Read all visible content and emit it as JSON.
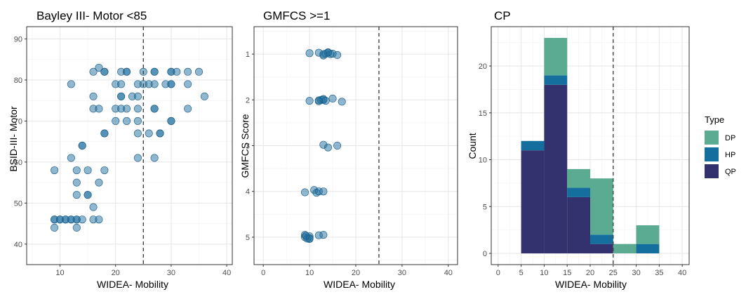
{
  "chart_data": [
    {
      "type": "scatter",
      "title": "Bayley III- Motor <85",
      "xlabel": "WIDEA- Mobility",
      "ylabel": "BSID-III- Motor",
      "xlim": [
        4,
        41
      ],
      "ylim": [
        35,
        93
      ],
      "xticks": [
        10,
        20,
        30,
        40
      ],
      "yticks": [
        40,
        50,
        60,
        70,
        80,
        90
      ],
      "grid": true,
      "vline": 25,
      "point_color": "#1f6fa0",
      "points": [
        [
          9,
          46
        ],
        [
          9,
          46
        ],
        [
          10,
          46
        ],
        [
          10,
          46
        ],
        [
          11,
          46
        ],
        [
          11,
          46
        ],
        [
          12,
          46
        ],
        [
          12,
          46
        ],
        [
          13,
          46
        ],
        [
          13,
          46
        ],
        [
          14,
          46
        ],
        [
          9,
          44
        ],
        [
          13,
          44
        ],
        [
          16,
          46
        ],
        [
          17,
          46
        ],
        [
          15,
          52
        ],
        [
          15,
          52
        ],
        [
          13,
          52
        ],
        [
          16,
          49
        ],
        [
          13,
          55
        ],
        [
          17,
          55
        ],
        [
          9,
          58
        ],
        [
          13,
          58
        ],
        [
          15,
          58
        ],
        [
          18,
          58
        ],
        [
          12,
          61
        ],
        [
          14,
          64
        ],
        [
          14,
          64
        ],
        [
          18,
          67
        ],
        [
          18,
          67
        ],
        [
          20,
          70
        ],
        [
          22,
          70
        ],
        [
          24,
          70
        ],
        [
          16,
          73
        ],
        [
          17,
          73
        ],
        [
          20,
          73
        ],
        [
          21,
          73
        ],
        [
          22,
          73
        ],
        [
          24,
          73
        ],
        [
          16,
          76
        ],
        [
          21,
          76
        ],
        [
          23,
          76
        ],
        [
          24,
          76
        ],
        [
          12,
          79
        ],
        [
          20,
          79
        ],
        [
          21,
          79
        ],
        [
          24,
          79
        ],
        [
          25,
          79
        ],
        [
          26,
          79
        ],
        [
          27,
          79
        ],
        [
          29,
          79
        ],
        [
          30,
          79
        ],
        [
          30,
          79
        ],
        [
          33,
          79
        ],
        [
          16,
          82
        ],
        [
          17,
          83
        ],
        [
          18,
          82
        ],
        [
          18,
          82
        ],
        [
          21,
          82
        ],
        [
          22,
          82
        ],
        [
          22,
          82
        ],
        [
          25,
          82
        ],
        [
          27,
          82
        ],
        [
          27,
          82
        ],
        [
          30,
          82
        ],
        [
          30,
          82
        ],
        [
          31,
          82
        ],
        [
          33,
          82
        ],
        [
          35,
          82
        ],
        [
          27,
          73
        ],
        [
          27,
          73
        ],
        [
          30,
          70
        ],
        [
          30,
          70
        ],
        [
          28,
          67
        ],
        [
          28,
          67
        ],
        [
          24,
          67
        ],
        [
          26,
          67
        ],
        [
          24,
          61
        ],
        [
          27,
          61
        ],
        [
          33,
          73
        ],
        [
          36,
          76
        ],
        [
          21,
          76
        ]
      ]
    },
    {
      "type": "scatter",
      "title": "GMFCS >=1",
      "xlabel": "WIDEA- Mobility",
      "ylabel": "GMFCS Score",
      "xlim": [
        -2,
        42
      ],
      "ylim": [
        0.4,
        5.6
      ],
      "y_reversed": true,
      "xticks": [
        0,
        10,
        20,
        30,
        40
      ],
      "yticks": [
        1,
        2,
        3,
        4,
        5
      ],
      "grid": true,
      "vline": 25,
      "point_color": "#1f6fa0",
      "points": [
        [
          10,
          0.98
        ],
        [
          12,
          0.97
        ],
        [
          13,
          1.03
        ],
        [
          13.5,
          0.99
        ],
        [
          14,
          0.96
        ],
        [
          14.5,
          1.0
        ],
        [
          14,
          0.97
        ],
        [
          15,
          0.99
        ],
        [
          16,
          1.02
        ],
        [
          13,
          1.0
        ],
        [
          10,
          2.02
        ],
        [
          12,
          2.01
        ],
        [
          12.5,
          2.0
        ],
        [
          13,
          2.0
        ],
        [
          13,
          1.98
        ],
        [
          12,
          2.03
        ],
        [
          13.5,
          2.02
        ],
        [
          15,
          1.97
        ],
        [
          17,
          2.04
        ],
        [
          13,
          2.98
        ],
        [
          14,
          3.04
        ],
        [
          16,
          3.0
        ],
        [
          9,
          4.02
        ],
        [
          11,
          3.97
        ],
        [
          11.5,
          4.03
        ],
        [
          12,
          4.0
        ],
        [
          13,
          4.0
        ],
        [
          9,
          4.95
        ],
        [
          9,
          5.0
        ],
        [
          9.5,
          5.03
        ],
        [
          10,
          5.02
        ],
        [
          10,
          4.98
        ],
        [
          10,
          5.04
        ],
        [
          12,
          4.96
        ],
        [
          13,
          4.95
        ],
        [
          9.2,
          4.97
        ]
      ]
    },
    {
      "type": "bar",
      "stacked": true,
      "title": "CP",
      "xlabel": "WIDEA- Mobility",
      "ylabel": "Count",
      "xlim": [
        -1.5,
        41.5
      ],
      "ylim": [
        -1.2,
        24.2
      ],
      "xticks": [
        0,
        5,
        10,
        15,
        20,
        25,
        30,
        35,
        40
      ],
      "yticks": [
        0,
        5,
        10,
        15,
        20
      ],
      "grid": true,
      "vline": 25,
      "bin_width": 5,
      "bins": [
        5,
        10,
        15,
        20,
        25,
        30
      ],
      "legend_title": "Type",
      "legend_position": "right",
      "series": [
        {
          "name": "QP",
          "color": "#33316e",
          "values": [
            11,
            18,
            6,
            1,
            0,
            0
          ]
        },
        {
          "name": "HP",
          "color": "#146f9e",
          "values": [
            1,
            1,
            1,
            1,
            0,
            1
          ]
        },
        {
          "name": "DP",
          "color": "#5aab91",
          "values": [
            0,
            4,
            2,
            6,
            1,
            2
          ]
        }
      ],
      "legend_order": [
        "DP",
        "HP",
        "QP"
      ]
    }
  ]
}
